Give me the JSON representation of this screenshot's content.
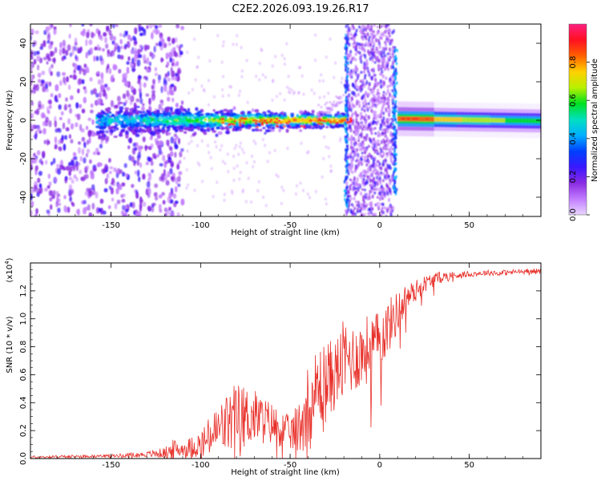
{
  "title": "C2E2.2026.093.19.26.R17",
  "colors": {
    "axis": "#000000",
    "snr_line": "#e8302a",
    "cmap": [
      "#ffffff",
      "#e9d6ff",
      "#c27cff",
      "#8a2be2",
      "#3a18ff",
      "#0040ff",
      "#00b0ff",
      "#00e0c0",
      "#00e020",
      "#b8f000",
      "#ffd000",
      "#ff6000",
      "#ff1020",
      "#ff2080"
    ]
  },
  "chart_data": [
    {
      "type": "heatmap",
      "xlabel": "Height of straight line (km)",
      "ylabel": "Frequency (Hz)",
      "xlim": [
        -195,
        90
      ],
      "ylim": [
        -50,
        50
      ],
      "xticks": [
        -150,
        -100,
        -50,
        0,
        50
      ],
      "xtick_labels": [
        "-150",
        "-100",
        "-50",
        "0",
        "50"
      ],
      "yticks": [
        -40,
        -20,
        0,
        20,
        40
      ],
      "ytick_labels": [
        "-40",
        "-20",
        "0",
        "20",
        "40"
      ],
      "colorbar": {
        "label": "Normalized spectral amplitude",
        "range": [
          0,
          1
        ],
        "ticks": [
          0.0,
          0.2,
          0.4,
          0.6,
          0.8
        ],
        "tick_labels": [
          "0.0",
          "0.2",
          "0.4",
          "0.6",
          "0.8"
        ]
      }
    },
    {
      "type": "line",
      "xlabel": "Height of straight line (km)",
      "ylabel": "SNR (10 * v/v)",
      "y_multiplier": "(x10",
      "y_multiplier_exp": "4",
      "y_multiplier_close": ")",
      "xlim": [
        -195,
        90
      ],
      "ylim": [
        0,
        1.4
      ],
      "xticks": [
        -150,
        -100,
        -50,
        0,
        50
      ],
      "xtick_labels": [
        "-150",
        "-100",
        "-50",
        "0",
        "50"
      ],
      "yticks": [
        0.0,
        0.2,
        0.4,
        0.6,
        0.8,
        1.0,
        1.2
      ],
      "ytick_labels": [
        "0.0",
        "0.2",
        "0.4",
        "0.6",
        "0.8",
        "1.0",
        "1.2"
      ],
      "series": [
        {
          "name": "SNR",
          "x": [
            -195,
            -170,
            -150,
            -130,
            -120,
            -115,
            -110,
            -100,
            -90,
            -80,
            -70,
            -60,
            -50,
            -45,
            -40,
            -35,
            -30,
            -25,
            -20,
            -15,
            -10,
            -5,
            0,
            5,
            10,
            15,
            20,
            25,
            30,
            35,
            40,
            50,
            60,
            70,
            80,
            90
          ],
          "y": [
            0.01,
            0.015,
            0.02,
            0.03,
            0.04,
            0.06,
            0.07,
            0.1,
            0.2,
            0.3,
            0.3,
            0.25,
            0.18,
            0.22,
            0.4,
            0.5,
            0.55,
            0.6,
            0.7,
            0.72,
            0.75,
            0.8,
            0.85,
            0.95,
            1.05,
            1.15,
            1.2,
            1.25,
            1.28,
            1.3,
            1.31,
            1.32,
            1.33,
            1.33,
            1.34,
            1.34
          ],
          "noise_amplitude": [
            0.01,
            0.01,
            0.01,
            0.02,
            0.04,
            0.08,
            0.05,
            0.1,
            0.2,
            0.25,
            0.2,
            0.15,
            0.12,
            0.2,
            0.3,
            0.3,
            0.3,
            0.25,
            0.3,
            0.25,
            0.25,
            0.25,
            0.2,
            0.2,
            0.15,
            0.1,
            0.08,
            0.06,
            0.05,
            0.04,
            0.03,
            0.02,
            0.02,
            0.02,
            0.02,
            0.02
          ]
        }
      ]
    }
  ]
}
